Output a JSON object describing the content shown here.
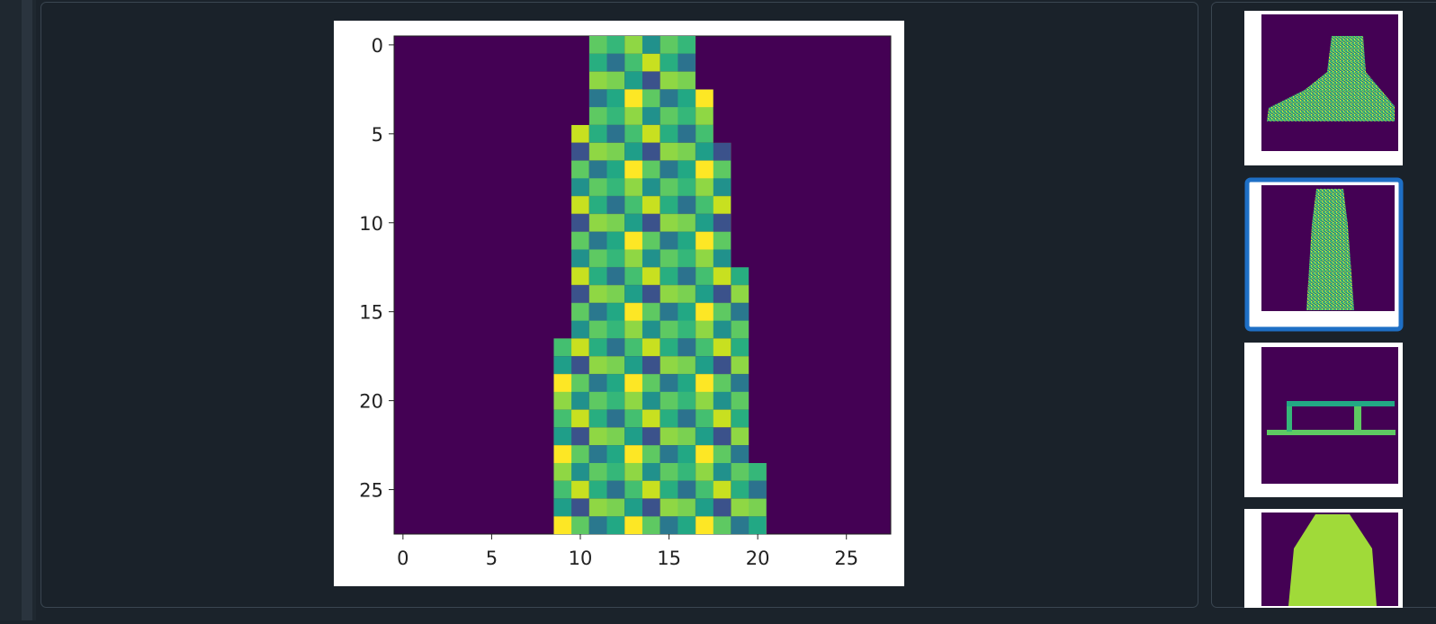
{
  "main_plot": {
    "xlim": [
      -0.5,
      27.5
    ],
    "ylim": [
      27.5,
      -0.5
    ],
    "xticks": [
      0,
      5,
      10,
      15,
      20,
      25
    ],
    "yticks": [
      0,
      5,
      10,
      15,
      20,
      25
    ]
  }
}
